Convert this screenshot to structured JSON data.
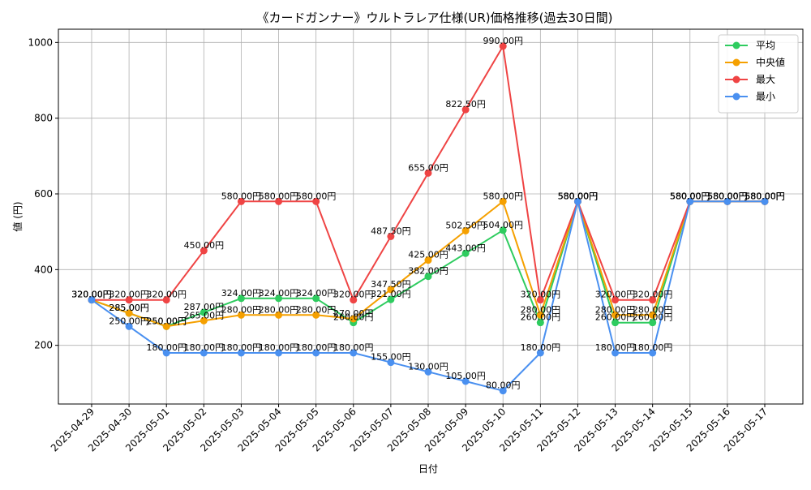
{
  "chart_data": {
    "type": "line",
    "title": "《カードガンナー》ウルトラレア仕様(UR)価格推移(過去30日間)",
    "xlabel": "日付",
    "ylabel": "値 (円)",
    "ylim": [
      45,
      1035
    ],
    "yticks": [
      200,
      400,
      600,
      800,
      1000
    ],
    "grid": true,
    "legend_position": "top-right",
    "value_suffix": "円",
    "categories": [
      "2025-04-29",
      "2025-04-30",
      "2025-05-01",
      "2025-05-02",
      "2025-05-03",
      "2025-05-04",
      "2025-05-05",
      "2025-05-06",
      "2025-05-07",
      "2025-05-08",
      "2025-05-09",
      "2025-05-10",
      "2025-05-11",
      "2025-05-12",
      "2025-05-13",
      "2025-05-14",
      "2025-05-15",
      "2025-05-16",
      "2025-05-17"
    ],
    "series": [
      {
        "name": "平均",
        "color": "#2ecc5f",
        "values": [
          320,
          285,
          250,
          287,
          324,
          324,
          324,
          260,
          321,
          382,
          443,
          504,
          260,
          580,
          260,
          260,
          580,
          580,
          580
        ],
        "labels": [
          "320.00円",
          "285.00円",
          "250.00円",
          "287.00円",
          "324.00円",
          "324.00円",
          "324.00円",
          "260.00円",
          "321.00円",
          "382.00円",
          "443.00円",
          "504.00円",
          "260.00円",
          "580.00円",
          "260.00円",
          "260.00円",
          "580.00円",
          "580.00円",
          "580.00円"
        ]
      },
      {
        "name": "中央値",
        "color": "#f5a000",
        "values": [
          320,
          285,
          250,
          265,
          280,
          280,
          280,
          270,
          347.5,
          425,
          502.5,
          580,
          280,
          580,
          280,
          280,
          580,
          580,
          580
        ],
        "labels": [
          "320.00円",
          "285.00円",
          "250.00円",
          "265.00円",
          "280.00円",
          "280.00円",
          "280.00円",
          "270.00円",
          "347.50円",
          "425.00円",
          "502.50円",
          "580.00円",
          "280.00円",
          "580.00円",
          "280.00円",
          "280.00円",
          "580.00円",
          "580.00円",
          "580.00円"
        ]
      },
      {
        "name": "最大",
        "color": "#ef4444",
        "values": [
          320,
          320,
          320,
          450,
          580,
          580,
          580,
          320,
          487.5,
          655,
          822.5,
          990,
          320,
          580,
          320,
          320,
          580,
          580,
          580
        ],
        "labels": [
          "320.00円",
          "320.00円",
          "320.00円",
          "450.00円",
          "580.00円",
          "580.00円",
          "580.00円",
          "320.00円",
          "487.50円",
          "655.00円",
          "822.50円",
          "990.00円",
          "320.00円",
          "580.00円",
          "320.00円",
          "320.00円",
          "580.00円",
          "580.00円",
          "580.00円"
        ]
      },
      {
        "name": "最小",
        "color": "#4a90f0",
        "values": [
          320,
          250,
          180,
          180,
          180,
          180,
          180,
          180,
          155,
          130,
          105,
          80,
          180,
          580,
          180,
          180,
          580,
          580,
          580
        ],
        "labels": [
          "320.00円",
          "250.00円",
          "180.00円",
          "180.00円",
          "180.00円",
          "180.00円",
          "180.00円",
          "180.00円",
          "155.00円",
          "130.00円",
          "105.00円",
          "80.00円",
          "180.00円",
          "580.00円",
          "180.00円",
          "180.00円",
          "580.00円",
          "580.00円",
          "580.00円"
        ]
      }
    ]
  }
}
